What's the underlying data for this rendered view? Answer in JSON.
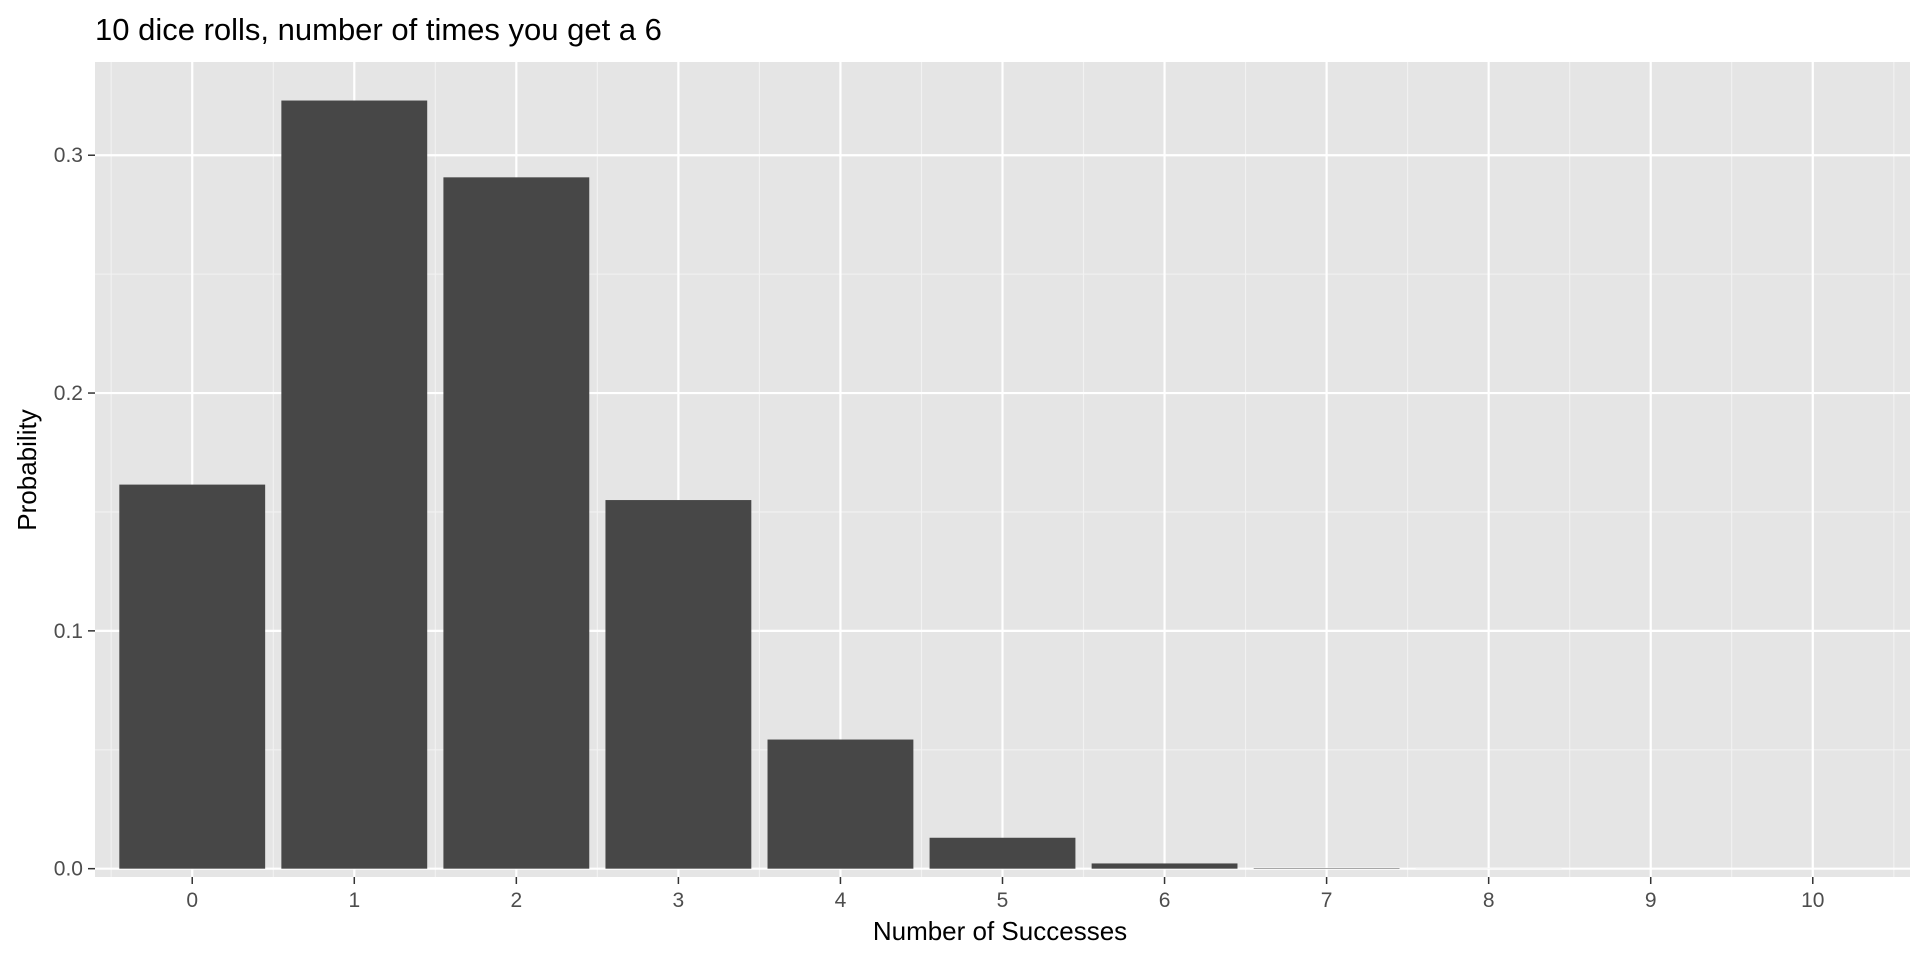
{
  "chart_data": {
    "type": "bar",
    "title": "10 dice rolls, number of times you get a 6",
    "xlabel": "Number of Successes",
    "ylabel": "Probability",
    "categories": [
      "0",
      "1",
      "2",
      "3",
      "4",
      "5",
      "6",
      "7",
      "8",
      "9",
      "10"
    ],
    "values": [
      0.1615,
      0.323,
      0.2907,
      0.155,
      0.0543,
      0.013,
      0.0022,
      0.0002,
      1.86e-05,
      8e-07,
      2e-08
    ],
    "ylim": [
      -0.0035,
      0.3392
    ],
    "yticks": [
      0.0,
      0.1,
      0.2,
      0.3
    ],
    "ytick_labels": [
      "0.0",
      "0.1",
      "0.2",
      "0.3"
    ],
    "grid": true,
    "legend": "none",
    "colors": {
      "bar": "#474747",
      "panel_background": "#e5e5e5",
      "grid_major": "#ffffff",
      "grid_minor": "#f2f2f2",
      "tick_text": "#4d4d4d",
      "text": "#000000"
    }
  }
}
